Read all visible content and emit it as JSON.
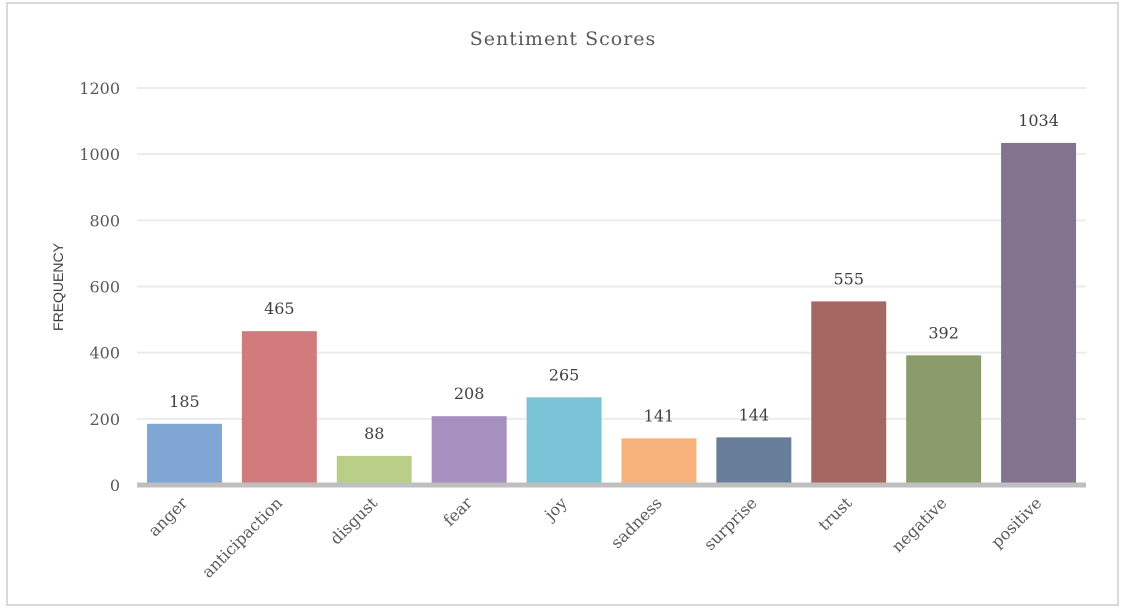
{
  "chart_data": {
    "type": "bar",
    "title": "Sentiment Scores",
    "xlabel": "",
    "ylabel": "FREQUENCY",
    "ylim": [
      0,
      1200
    ],
    "yticks": [
      "0",
      "200",
      "400",
      "600",
      "800",
      "1000",
      "1200"
    ],
    "grid": true,
    "categories": [
      "anger",
      "anticipaction",
      "disgust",
      "fear",
      "joy",
      "sadness",
      "surprise",
      "trust",
      "negative",
      "positive"
    ],
    "values": [
      185,
      465,
      88,
      208,
      265,
      141,
      144,
      555,
      392,
      1034
    ],
    "data_labels": [
      "185",
      "465",
      "88",
      "208",
      "265",
      "141",
      "144",
      "555",
      "392",
      "1034"
    ],
    "colors": [
      "#7fa6d4",
      "#d27b7c",
      "#b9cf87",
      "#a590bf",
      "#7bc3d6",
      "#f7b27c",
      "#687d99",
      "#a56762",
      "#8a9c6b",
      "#84738f"
    ]
  }
}
